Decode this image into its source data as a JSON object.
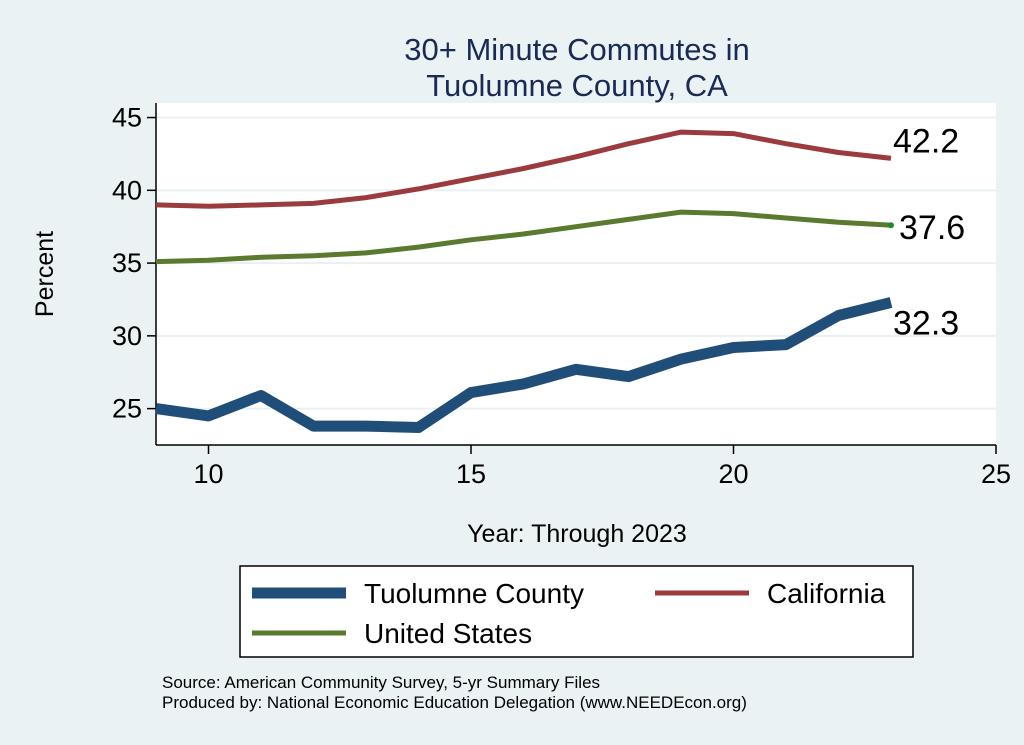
{
  "chart_data": {
    "type": "line",
    "title": [
      "30+ Minute Commutes in",
      "Tuolumne County, CA"
    ],
    "xlabel": "Year: Through 2023",
    "ylabel": "Percent",
    "xlim": [
      9,
      25
    ],
    "ylim": [
      22.5,
      46
    ],
    "xticks": [
      10,
      15,
      20,
      25
    ],
    "yticks": [
      25,
      30,
      35,
      40,
      45
    ],
    "grid": true,
    "legend_position": "bottom",
    "series": [
      {
        "name": "Tuolumne County",
        "color": "#1f4e79",
        "x": [
          9,
          10,
          11,
          12,
          13,
          14,
          15,
          16,
          17,
          18,
          19,
          20,
          21,
          22,
          23
        ],
        "values": [
          25.0,
          24.5,
          25.9,
          23.8,
          23.8,
          23.7,
          26.1,
          26.7,
          27.7,
          27.2,
          28.4,
          29.2,
          29.4,
          31.4,
          32.3
        ],
        "end_label": "32.3"
      },
      {
        "name": "California",
        "color": "#9b3b3e",
        "x": [
          9,
          10,
          11,
          12,
          13,
          14,
          15,
          16,
          17,
          18,
          19,
          20,
          21,
          22,
          23
        ],
        "values": [
          39.0,
          38.9,
          39.0,
          39.1,
          39.5,
          40.1,
          40.8,
          41.5,
          42.3,
          43.2,
          44.0,
          43.9,
          43.2,
          42.6,
          42.2
        ],
        "end_label": "42.2"
      },
      {
        "name": "United States",
        "color": "#5a7a2f",
        "x": [
          9,
          10,
          11,
          12,
          13,
          14,
          15,
          16,
          17,
          18,
          19,
          20,
          21,
          22,
          23
        ],
        "values": [
          35.1,
          35.2,
          35.4,
          35.5,
          35.7,
          36.1,
          36.6,
          37.0,
          37.5,
          38.0,
          38.5,
          38.4,
          38.1,
          37.8,
          37.6
        ],
        "end_label": "37.6"
      }
    ],
    "notes": [
      "Source: American Community Survey, 5-yr Summary Files",
      "Produced by: National Economic Education Delegation (www.NEEDEcon.org)"
    ]
  }
}
